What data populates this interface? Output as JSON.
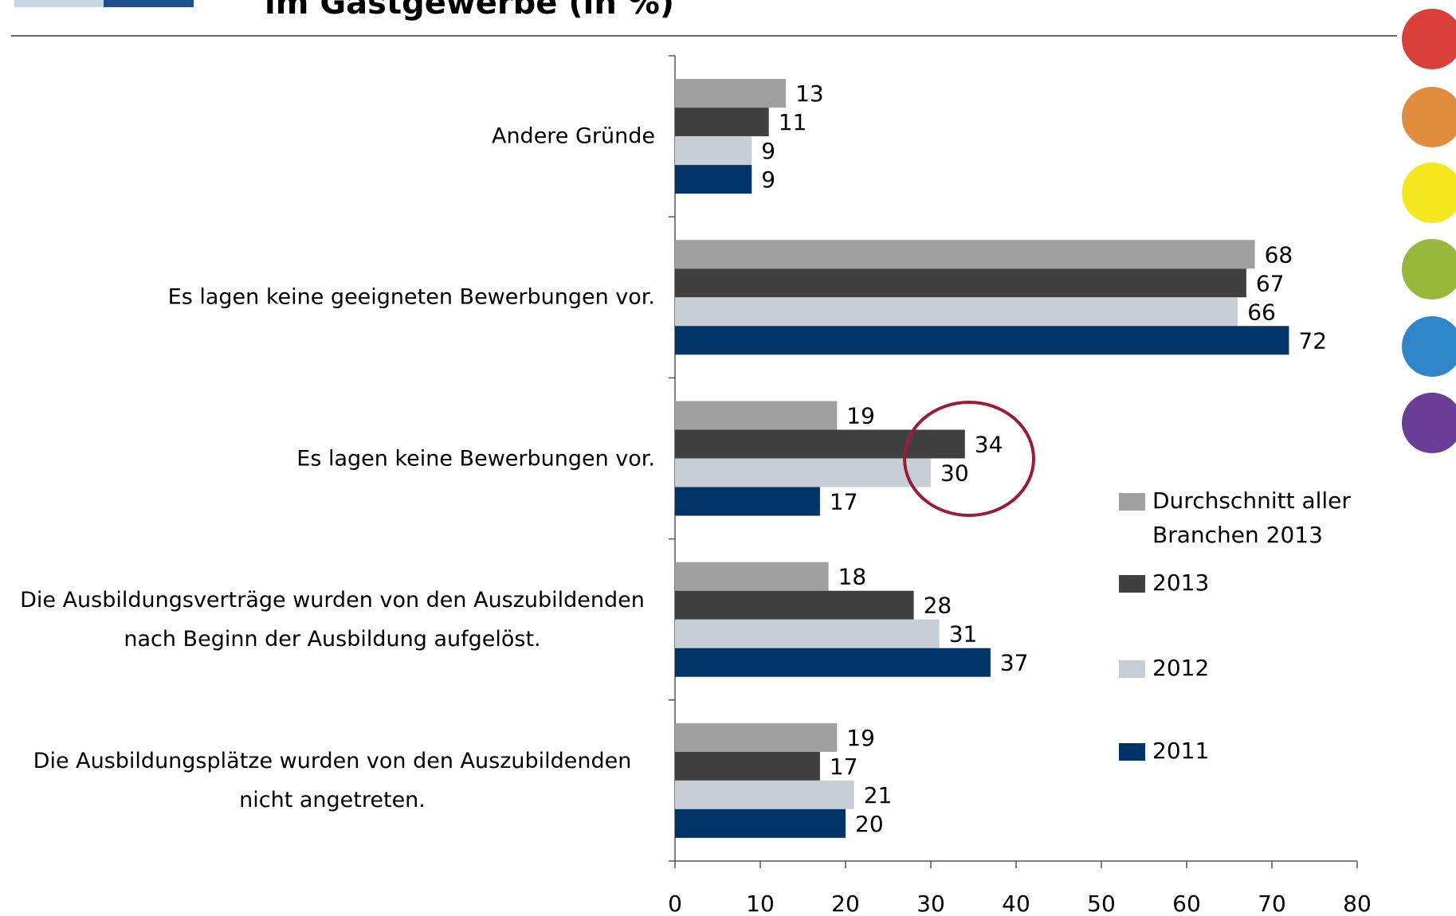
{
  "chart_data": {
    "type": "barh",
    "title": "im Gastgewerbe (in %)",
    "categories": [
      "Andere Gründe",
      "Es lagen keine geeigneten Bewerbungen vor.",
      "Es lagen keine Bewerbungen vor.",
      "Die Ausbildungsverträge wurden von den Auszubildenden nach Beginn der Ausbildung aufgelöst.",
      "Die Ausbildungsplätze wurden von den Auszubildenden nicht angetreten."
    ],
    "series": [
      {
        "name": "Durchschnitt aller Branchen 2013",
        "color": "#a0a0a0",
        "values": [
          13,
          68,
          19,
          18,
          19
        ]
      },
      {
        "name": "2013",
        "color": "#404040",
        "values": [
          11,
          67,
          34,
          28,
          17
        ]
      },
      {
        "name": "2012",
        "color": "#c8ced6",
        "values": [
          9,
          66,
          30,
          31,
          21
        ]
      },
      {
        "name": "2011",
        "color": "#003366",
        "values": [
          9,
          72,
          17,
          37,
          20
        ]
      }
    ],
    "xlim": [
      0,
      80
    ],
    "xticks": [
      0,
      10,
      20,
      30,
      40,
      50,
      60,
      70,
      80
    ],
    "legend": "right"
  }
}
